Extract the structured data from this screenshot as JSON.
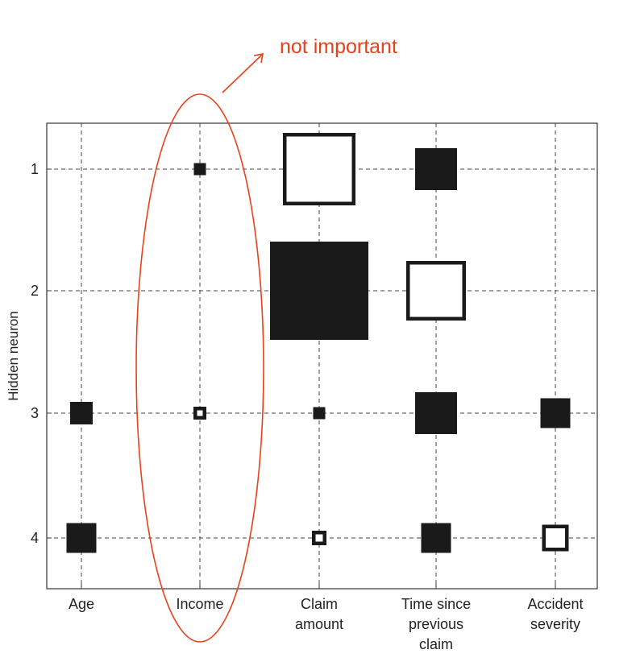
{
  "chart_data": {
    "type": "hinton",
    "title": "",
    "xlabel": "",
    "ylabel": "Hidden neuron",
    "categories": [
      [
        "Age"
      ],
      [
        "Income"
      ],
      [
        "Claim",
        "amount"
      ],
      [
        "Time since",
        "previous",
        "claim"
      ],
      [
        "Accident",
        "severity"
      ]
    ],
    "neurons": [
      "1",
      "2",
      "3",
      "4"
    ],
    "grid": true,
    "cells": [
      {
        "neuron": 1,
        "category": 2,
        "value": 0.15
      },
      {
        "neuron": 1,
        "category": 3,
        "value": -0.9
      },
      {
        "neuron": 1,
        "category": 4,
        "value": 0.52
      },
      {
        "neuron": 2,
        "category": 3,
        "value": 1.22
      },
      {
        "neuron": 2,
        "category": 4,
        "value": -0.74
      },
      {
        "neuron": 3,
        "category": 1,
        "value": 0.28
      },
      {
        "neuron": 3,
        "category": 2,
        "value": -0.16
      },
      {
        "neuron": 3,
        "category": 3,
        "value": 0.15
      },
      {
        "neuron": 3,
        "category": 4,
        "value": 0.52
      },
      {
        "neuron": 3,
        "category": 5,
        "value": 0.37
      },
      {
        "neuron": 4,
        "category": 1,
        "value": 0.37
      },
      {
        "neuron": 4,
        "category": 3,
        "value": -0.18
      },
      {
        "neuron": 4,
        "category": 4,
        "value": 0.37
      },
      {
        "neuron": 4,
        "category": 5,
        "value": -0.33
      }
    ],
    "annotation": {
      "text": "not important",
      "target_category": 2
    },
    "colors": {
      "positive": "#1a1a1a",
      "negative_fill": "#ffffff",
      "negative_stroke": "#1a1a1a",
      "annotation": "#e8401c",
      "frame": "#333333"
    }
  }
}
